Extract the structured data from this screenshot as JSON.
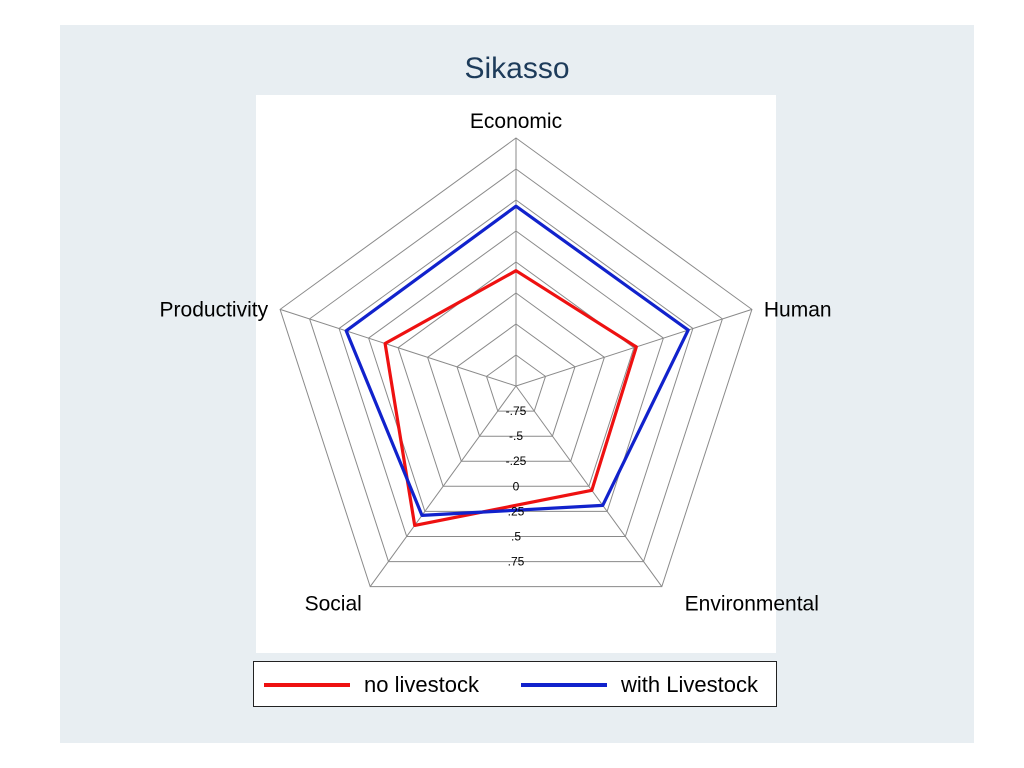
{
  "chart_data": {
    "type": "radar",
    "title": "Sikasso",
    "axes": [
      "Economic",
      "Human",
      "Environmental",
      "Social",
      "Productivity"
    ],
    "range": [
      -1,
      1
    ],
    "rings": [
      -0.75,
      -0.5,
      -0.25,
      0,
      0.25,
      0.5,
      0.75,
      1
    ],
    "tick_labels": [
      "-.75",
      "-.5",
      "-.25",
      "0",
      ".25",
      ".5",
      ".75"
    ],
    "tick_values": [
      -0.75,
      -0.5,
      -0.25,
      0,
      0.25,
      0.5,
      0.75
    ],
    "series": [
      {
        "name": "no livestock",
        "color": "#ee1111",
        "values": [
          -0.07,
          0.02,
          0.04,
          0.39,
          0.11
        ]
      },
      {
        "name": "with Livestock",
        "color": "#1122cc",
        "values": [
          0.45,
          0.46,
          0.19,
          0.29,
          0.44
        ]
      }
    ],
    "legend_position": "bottom"
  },
  "legend": {
    "no_livestock": "no livestock",
    "with_livestock": "with Livestock"
  }
}
